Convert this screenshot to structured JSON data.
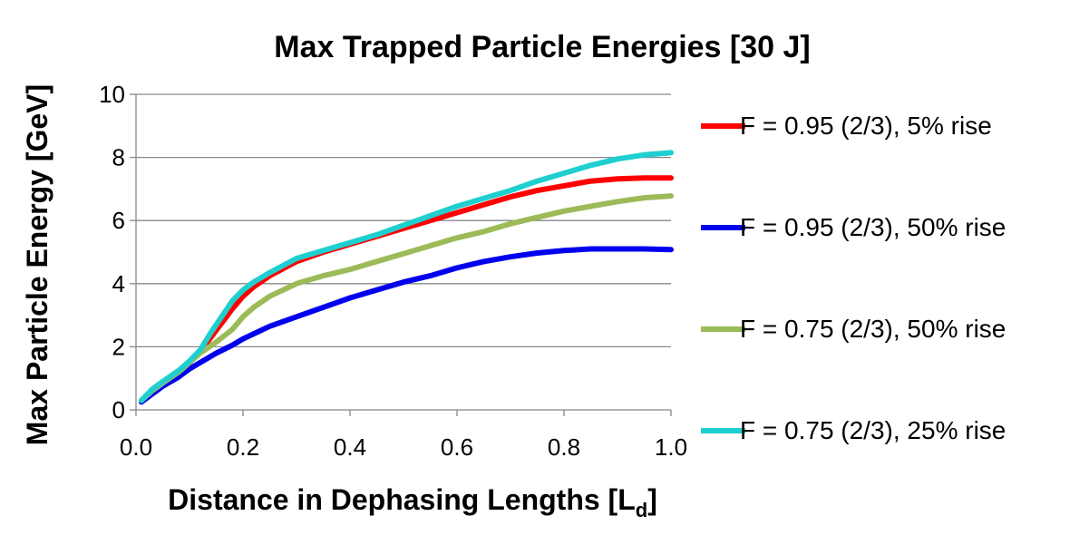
{
  "chart_data": {
    "type": "line",
    "title": "Max Trapped Particle Energies [30 J]",
    "xlabel": "Distance in Dephasing Lengths [L",
    "xlabel_subscript": "d",
    "xlabel_end": "]",
    "ylabel": "Max Particle Energy [GeV]",
    "xlim": [
      0,
      1.0
    ],
    "ylim": [
      0,
      10
    ],
    "xticks": [
      "0.0",
      "0.2",
      "0.4",
      "0.6",
      "0.8",
      "1.0"
    ],
    "xtick_values": [
      0,
      0.2,
      0.4,
      0.6,
      0.8,
      1.0
    ],
    "yticks": [
      "0",
      "2",
      "4",
      "6",
      "8",
      "10"
    ],
    "ytick_values": [
      0,
      2,
      4,
      6,
      8,
      10
    ],
    "grid": "horizontal",
    "legend_position": "right",
    "series": [
      {
        "name": "F = 0.95 (2/3), 5% rise",
        "color": "#ff0000",
        "x": [
          0.01,
          0.03,
          0.05,
          0.08,
          0.1,
          0.12,
          0.14,
          0.16,
          0.18,
          0.2,
          0.22,
          0.25,
          0.3,
          0.35,
          0.4,
          0.45,
          0.5,
          0.55,
          0.6,
          0.65,
          0.7,
          0.75,
          0.8,
          0.85,
          0.9,
          0.95,
          1.0
        ],
        "y": [
          0.3,
          0.6,
          0.85,
          1.2,
          1.5,
          1.85,
          2.3,
          2.75,
          3.2,
          3.6,
          3.9,
          4.25,
          4.7,
          5.0,
          5.25,
          5.5,
          5.75,
          6.0,
          6.25,
          6.5,
          6.75,
          6.95,
          7.1,
          7.25,
          7.32,
          7.35,
          7.35
        ]
      },
      {
        "name": "F = 0.95 (2/3), 50% rise",
        "color": "#0000ee",
        "x": [
          0.01,
          0.03,
          0.05,
          0.08,
          0.1,
          0.12,
          0.15,
          0.18,
          0.2,
          0.25,
          0.3,
          0.35,
          0.4,
          0.45,
          0.5,
          0.55,
          0.6,
          0.65,
          0.7,
          0.75,
          0.8,
          0.85,
          0.9,
          0.95,
          1.0
        ],
        "y": [
          0.25,
          0.5,
          0.75,
          1.05,
          1.3,
          1.5,
          1.8,
          2.05,
          2.25,
          2.65,
          2.95,
          3.25,
          3.55,
          3.8,
          4.05,
          4.25,
          4.5,
          4.7,
          4.85,
          4.97,
          5.05,
          5.1,
          5.1,
          5.1,
          5.08
        ]
      },
      {
        "name": "F = 0.75 (2/3), 50% rise",
        "color": "#9bbb59",
        "x": [
          0.01,
          0.03,
          0.05,
          0.08,
          0.1,
          0.12,
          0.15,
          0.18,
          0.2,
          0.22,
          0.25,
          0.3,
          0.35,
          0.4,
          0.45,
          0.5,
          0.55,
          0.6,
          0.65,
          0.7,
          0.75,
          0.8,
          0.85,
          0.9,
          0.95,
          1.0
        ],
        "y": [
          0.3,
          0.6,
          0.85,
          1.2,
          1.5,
          1.8,
          2.15,
          2.55,
          2.95,
          3.25,
          3.6,
          4.0,
          4.25,
          4.45,
          4.7,
          4.95,
          5.2,
          5.45,
          5.65,
          5.9,
          6.1,
          6.3,
          6.45,
          6.6,
          6.72,
          6.78
        ]
      },
      {
        "name": "F = 0.75 (2/3), 25% rise",
        "color": "#1fcfcf",
        "x": [
          0.01,
          0.03,
          0.05,
          0.08,
          0.1,
          0.12,
          0.14,
          0.16,
          0.18,
          0.2,
          0.22,
          0.25,
          0.3,
          0.35,
          0.4,
          0.45,
          0.5,
          0.55,
          0.6,
          0.65,
          0.7,
          0.75,
          0.8,
          0.85,
          0.9,
          0.95,
          1.0
        ],
        "y": [
          0.3,
          0.65,
          0.9,
          1.25,
          1.55,
          1.9,
          2.45,
          2.95,
          3.45,
          3.8,
          4.05,
          4.35,
          4.8,
          5.05,
          5.3,
          5.55,
          5.85,
          6.15,
          6.45,
          6.7,
          6.95,
          7.25,
          7.5,
          7.75,
          7.95,
          8.08,
          8.15
        ]
      }
    ]
  }
}
